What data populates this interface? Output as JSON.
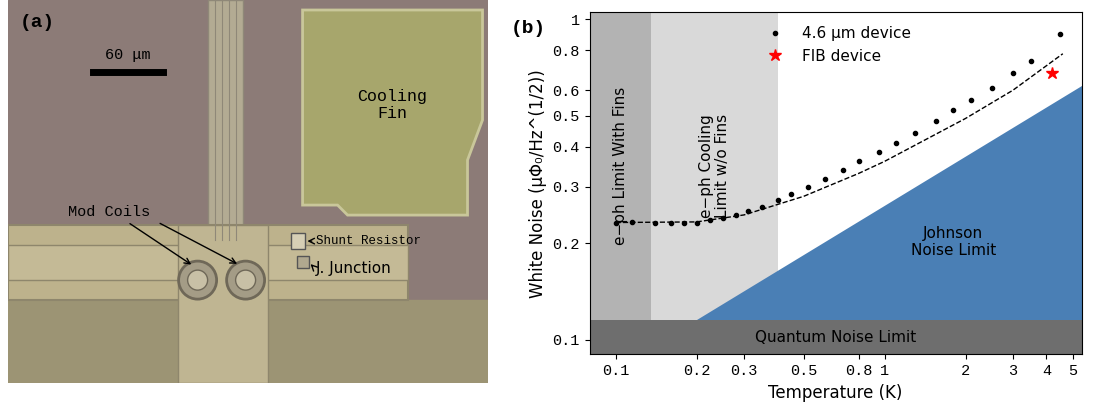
{
  "panel_a": {
    "panel_label": "(a)",
    "scale_bar": "60 μm",
    "labels": {
      "cooling_fin": "Cooling\nFin",
      "mod_coils": "Mod Coils",
      "shunt_resistor": "Shunt Resistor",
      "junction": "J. Junction"
    }
  },
  "chart_data": {
    "type": "scatter",
    "panel_label": "(b)",
    "x_label": "Temperature (K)",
    "y_label": "White Noise (μΦ₀/Hz^(1/2))",
    "log": true,
    "legend": "upper center",
    "xlim": [
      0.08,
      5.4
    ],
    "ylim": [
      0.09,
      1.05
    ],
    "xticks": [
      0.1,
      0.2,
      0.3,
      0.5,
      0.8,
      1,
      2,
      3,
      4,
      5
    ],
    "yticks": [
      0.1,
      0.2,
      0.3,
      0.4,
      0.5,
      0.6,
      0.8,
      1
    ],
    "regions": [
      {
        "label": "e−ph Cooling\nLimit w/o Fins",
        "x": [
          0.135,
          0.4,
          0.4,
          0.135
        ],
        "y": [
          0.115,
          0.115,
          1.05,
          1.05
        ],
        "color": "#d9d9d9",
        "orientation": "vertical"
      },
      {
        "label": "e−ph Limit With Fins",
        "x": [
          0.08,
          0.135,
          0.135,
          0.08
        ],
        "y": [
          0.115,
          0.115,
          1.05,
          1.05
        ],
        "color": "#b3b3b3",
        "orientation": "vertical"
      },
      {
        "label": "Johnson\nNoise Limit",
        "x": [
          0.2,
          5.4,
          5.4
        ],
        "y": [
          0.115,
          0.115,
          0.62
        ],
        "color": "#4a7fb5",
        "orientation": "horizontal"
      },
      {
        "label": "Quantum Noise Limit",
        "x": [
          0.08,
          5.4,
          5.4,
          0.08
        ],
        "y": [
          0.09,
          0.09,
          0.115,
          0.115
        ],
        "color": "#6e6e6e",
        "orientation": "horizontal"
      }
    ],
    "series": [
      {
        "name": "4.6 μm device",
        "type": "scatter",
        "marker": "point",
        "color": "#000000",
        "x": [
          0.1,
          0.115,
          0.14,
          0.16,
          0.18,
          0.2,
          0.225,
          0.25,
          0.28,
          0.31,
          0.35,
          0.4,
          0.45,
          0.52,
          0.6,
          0.7,
          0.8,
          0.95,
          1.1,
          1.3,
          1.55,
          1.8,
          2.1,
          2.5,
          3.0,
          3.5,
          4.5
        ],
        "values": [
          0.232,
          0.233,
          0.232,
          0.232,
          0.231,
          0.232,
          0.236,
          0.24,
          0.245,
          0.252,
          0.26,
          0.272,
          0.285,
          0.3,
          0.318,
          0.338,
          0.36,
          0.385,
          0.41,
          0.44,
          0.48,
          0.52,
          0.56,
          0.61,
          0.68,
          0.74,
          0.9
        ]
      },
      {
        "type": "line",
        "line_style": "dashed",
        "color": "#000000",
        "x": [
          0.1,
          0.2,
          0.3,
          0.5,
          0.8,
          1,
          2,
          3,
          4.6
        ],
        "values": [
          0.232,
          0.233,
          0.245,
          0.28,
          0.33,
          0.36,
          0.49,
          0.6,
          0.78
        ]
      },
      {
        "name": "FIB device",
        "type": "scatter",
        "marker": "star",
        "color": "#ff0000",
        "x": [
          4.2
        ],
        "values": [
          0.68
        ]
      }
    ]
  }
}
